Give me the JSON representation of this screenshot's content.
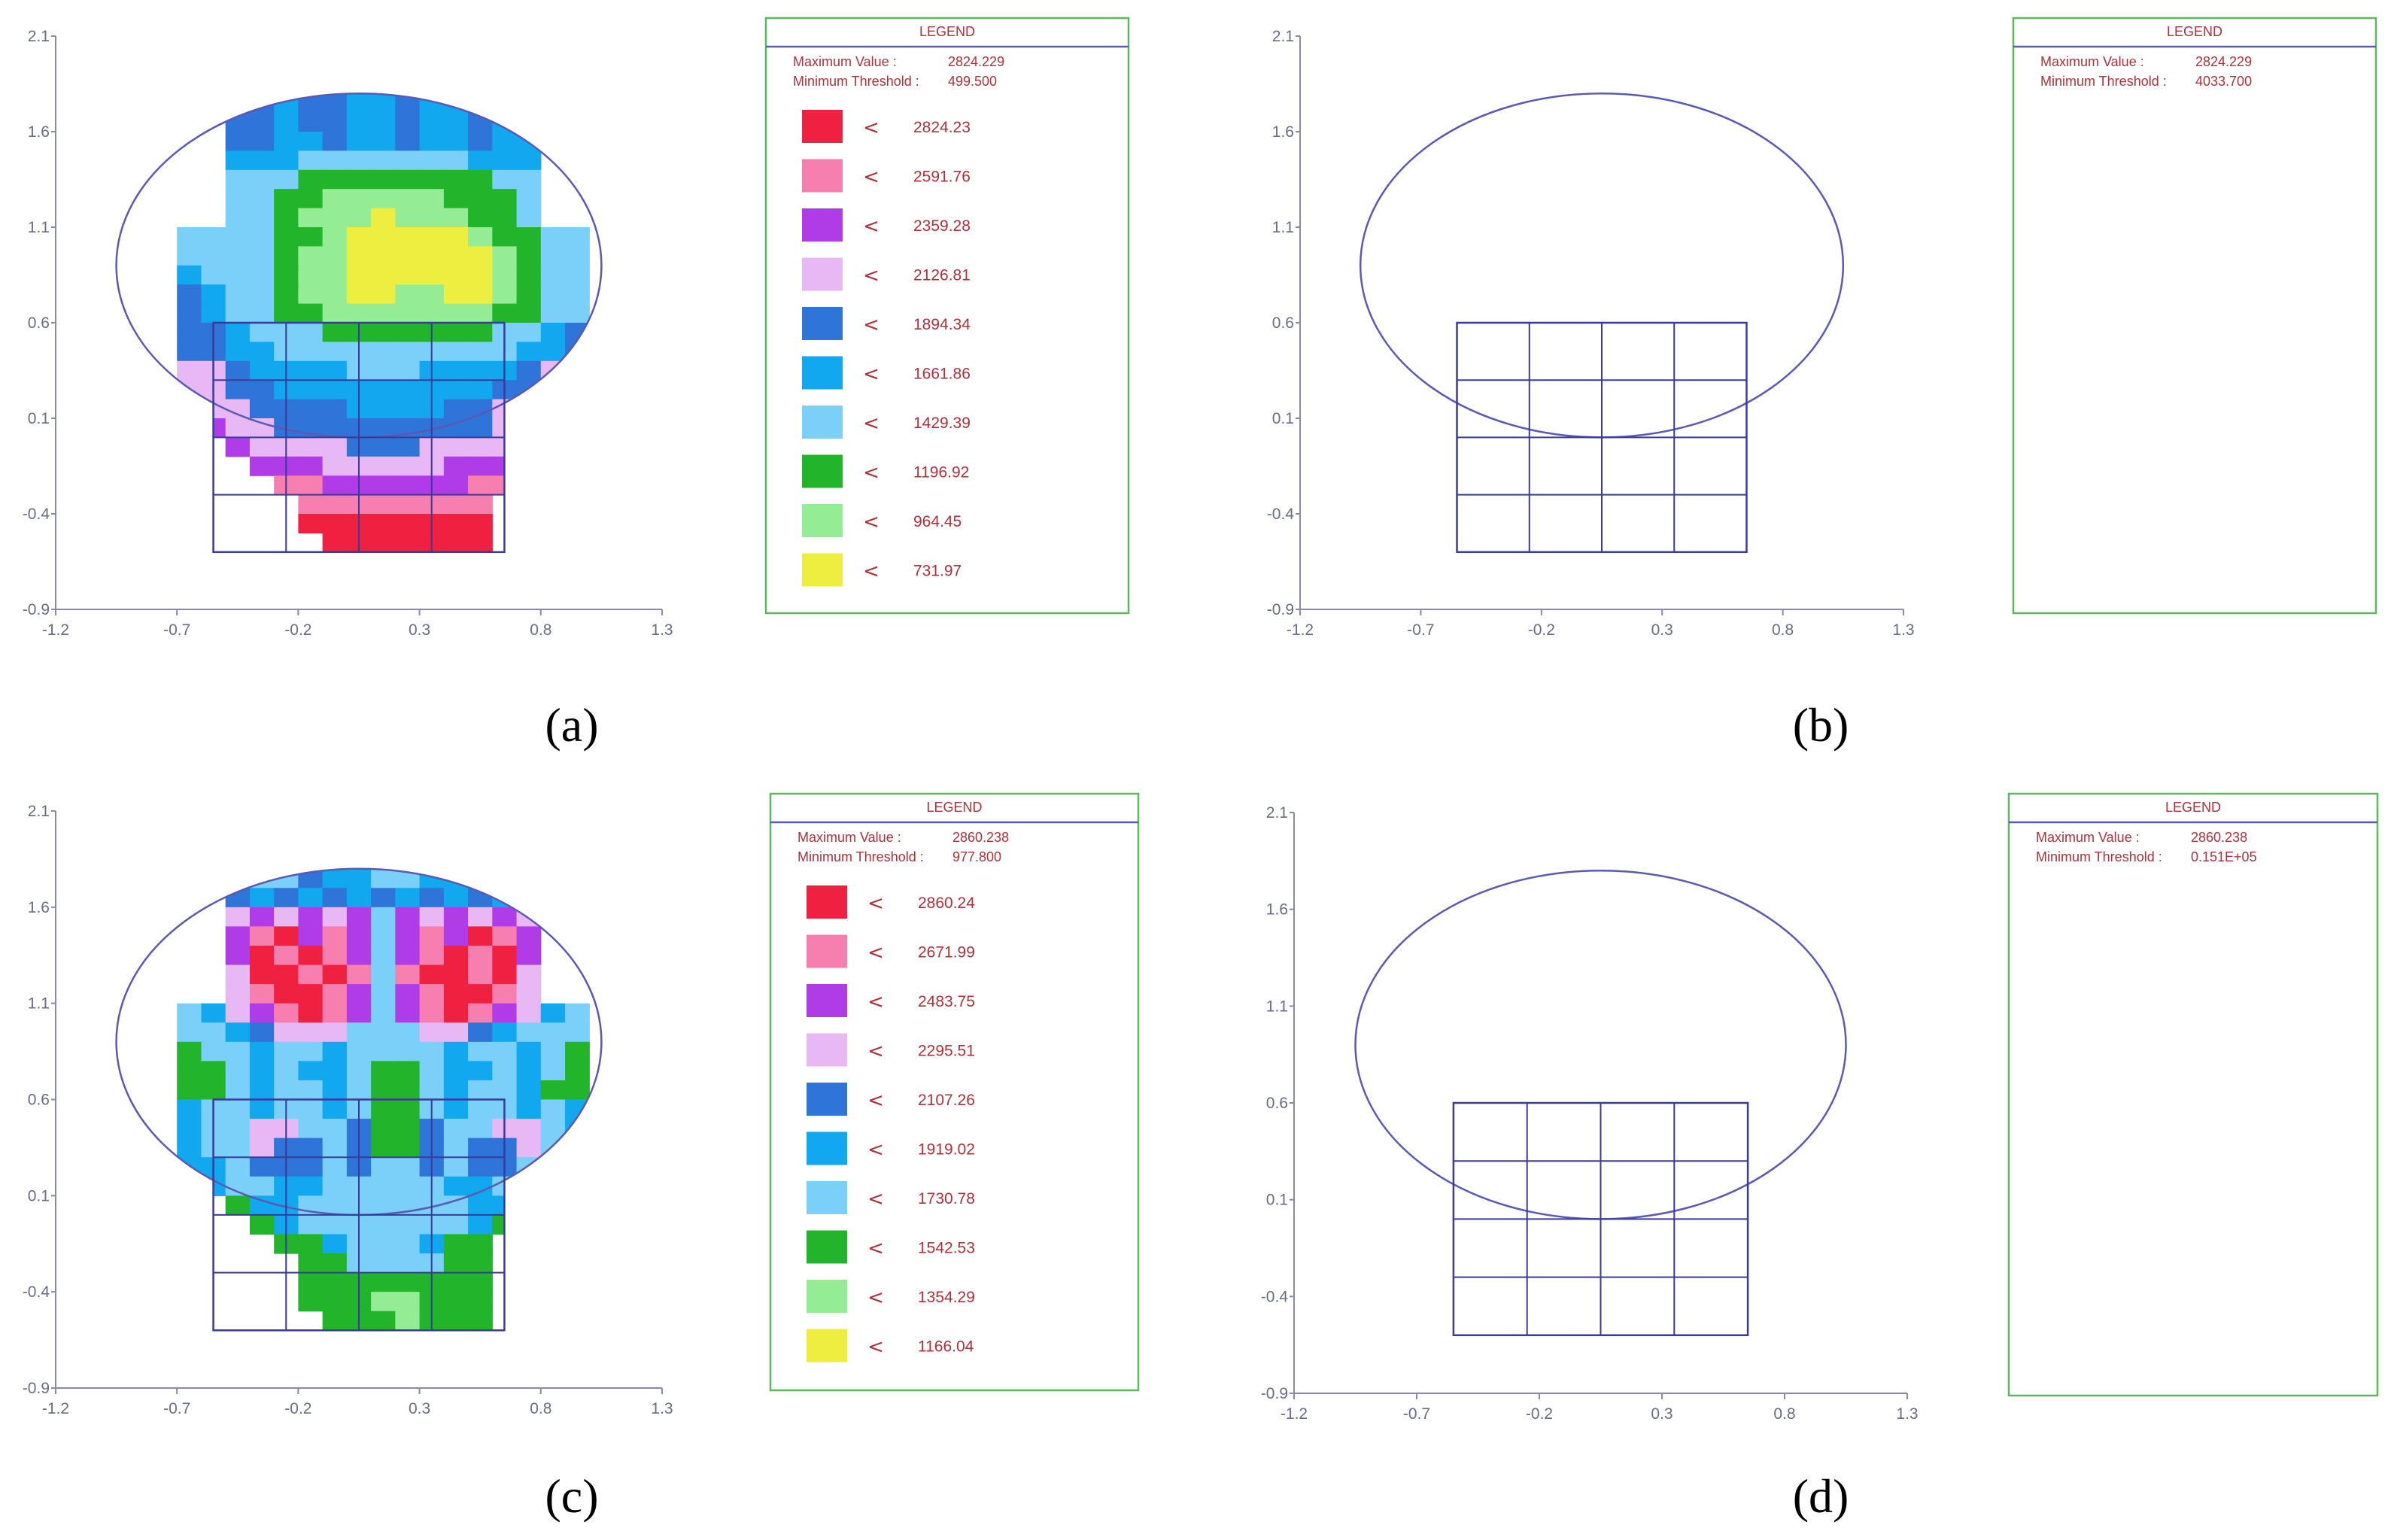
{
  "colors": {
    "axis": "#8888aa",
    "outline": "#5a5ab4",
    "grid": "#3a3a9a",
    "legend_border": "#5cb85c",
    "legend_rule": "#5a5ab4",
    "legend_text": "#b0303a",
    "levels": [
      "#ef2040",
      "#f77fb0",
      "#b03ce8",
      "#e8b8f4",
      "#2f74d8",
      "#12a8f0",
      "#7ad0f8",
      "#22b42a",
      "#94ec94",
      "#eeee40"
    ]
  },
  "chart_data": [
    {
      "type": "heatmap",
      "panel_label": "(a)",
      "x_ticks": [
        "-1.2",
        "-0.7",
        "-0.2",
        "0.3",
        "0.8",
        "1.3"
      ],
      "y_ticks": [
        "2.1",
        "1.6",
        "1.1",
        "0.6",
        "0.1",
        "-0.4",
        "-0.9"
      ],
      "xlim": [
        -1.2,
        1.3
      ],
      "ylim": [
        -0.9,
        2.1
      ],
      "legend": {
        "title": "LEGEND",
        "max_label": "Maximum Value :",
        "max_value": "2824.229",
        "min_label": "Minimum Threshold :",
        "min_value": "499.500",
        "arrow": "<",
        "levels": [
          "2824.23",
          "2591.76",
          "2359.28",
          "2126.81",
          "1894.34",
          "1661.86",
          "1429.39",
          "1196.92",
          "964.45",
          "731.97"
        ]
      },
      "field": {
        "x0": -1.0,
        "y0": -0.6,
        "dx": 0.1,
        "dy": 0.1,
        "rows": [
          ".....4454455455455.....",
          ".....4454455455455.....",
          ".....4455455455455.....",
          ".....5556666666555.....",
          ".....6667777777766.....",
          ".....6677888887776.....",
          ".....6678889888776.....",
          "...66667789999987766...",
          "...66667889999998766...",
          "...56667889999998766...",
          "...45667889988998766...",
          "...45667788888887766...",
          "...44566677777776654...",
          "...44556666666666554...",
          "...33455556665555433...",
          "...33445555555554433...",
          "...23344445555443332...",
          "....233444444444332....",
          ".....2333344433332.....",
          "......22233333222......",
          ".......1122222211......",
          "........11111111.......",
          "........00000000.......",
          ".........0000000......."
        ]
      }
    },
    {
      "type": "heatmap",
      "panel_label": "(b)",
      "x_ticks": [
        "-1.2",
        "-0.7",
        "-0.2",
        "0.3",
        "0.8",
        "1.3"
      ],
      "y_ticks": [
        "2.1",
        "1.6",
        "1.1",
        "0.6",
        "0.1",
        "-0.4",
        "-0.9"
      ],
      "xlim": [
        -1.2,
        1.3
      ],
      "ylim": [
        -0.9,
        2.1
      ],
      "legend": {
        "title": "LEGEND",
        "max_label": "Maximum Value :",
        "max_value": "2824.229",
        "min_label": "Minimum Threshold :",
        "min_value": "4033.700",
        "arrow": "<",
        "levels": []
      },
      "field": null
    },
    {
      "type": "heatmap",
      "panel_label": "(c)",
      "x_ticks": [
        "-1.2",
        "-0.7",
        "-0.2",
        "0.3",
        "0.8",
        "1.3"
      ],
      "y_ticks": [
        "2.1",
        "1.6",
        "1.1",
        "0.6",
        "0.1",
        "-0.4",
        "-0.9"
      ],
      "xlim": [
        -1.2,
        1.3
      ],
      "ylim": [
        -0.9,
        2.1
      ],
      "legend": {
        "title": "LEGEND",
        "max_label": "Maximum Value :",
        "max_value": "2860.238",
        "min_label": "Minimum Threshold :",
        "min_value": "977.800",
        "arrow": "<",
        "levels": [
          "2860.24",
          "2671.99",
          "2483.75",
          "2295.51",
          "2107.26",
          "1919.02",
          "1730.78",
          "1542.53",
          "1354.29",
          "1166.04"
        ]
      },
      "field": {
        "x0": -1.0,
        "y0": -0.6,
        "dx": 0.1,
        "dy": 0.1,
        "rows": [
          ".....5664556655466.....",
          ".....4545454545454.....",
          ".....3232326232323.....",
          ".....2102126212012.....",
          ".....2010126210102.....",
          ".....3001016100103.....",
          ".....3100126210013.....",
          "...65321012621012356...",
          "...66543336663345666...",
          "...76656656666566567...",
          "...77656556776556567...",
          "...77656656776566577...",
          "...56656656776566565...",
          "...56633664774663365...",
          "...56634464774644365...",
          "...55644464664644655...",
          "....566556666655665....",
          ".....7556666666557.....",
          "......75666666657......",
          ".......775666577.......",
          "........77666677.......",
          "........77777777.......",
          "........77788777.......",
          ".........7778777......."
        ]
      }
    },
    {
      "type": "heatmap",
      "panel_label": "(d)",
      "x_ticks": [
        "-1.2",
        "-0.7",
        "-0.2",
        "0.3",
        "0.8",
        "1.3"
      ],
      "y_ticks": [
        "2.1",
        "1.6",
        "1.1",
        "0.6",
        "0.1",
        "-0.4",
        "-0.9"
      ],
      "xlim": [
        -1.2,
        1.3
      ],
      "ylim": [
        -0.9,
        2.1
      ],
      "legend": {
        "title": "LEGEND",
        "max_label": "Maximum Value :",
        "max_value": "2860.238",
        "min_label": "Minimum Threshold :",
        "min_value": "0.151E+05",
        "arrow": "<",
        "levels": []
      },
      "field": null
    }
  ]
}
